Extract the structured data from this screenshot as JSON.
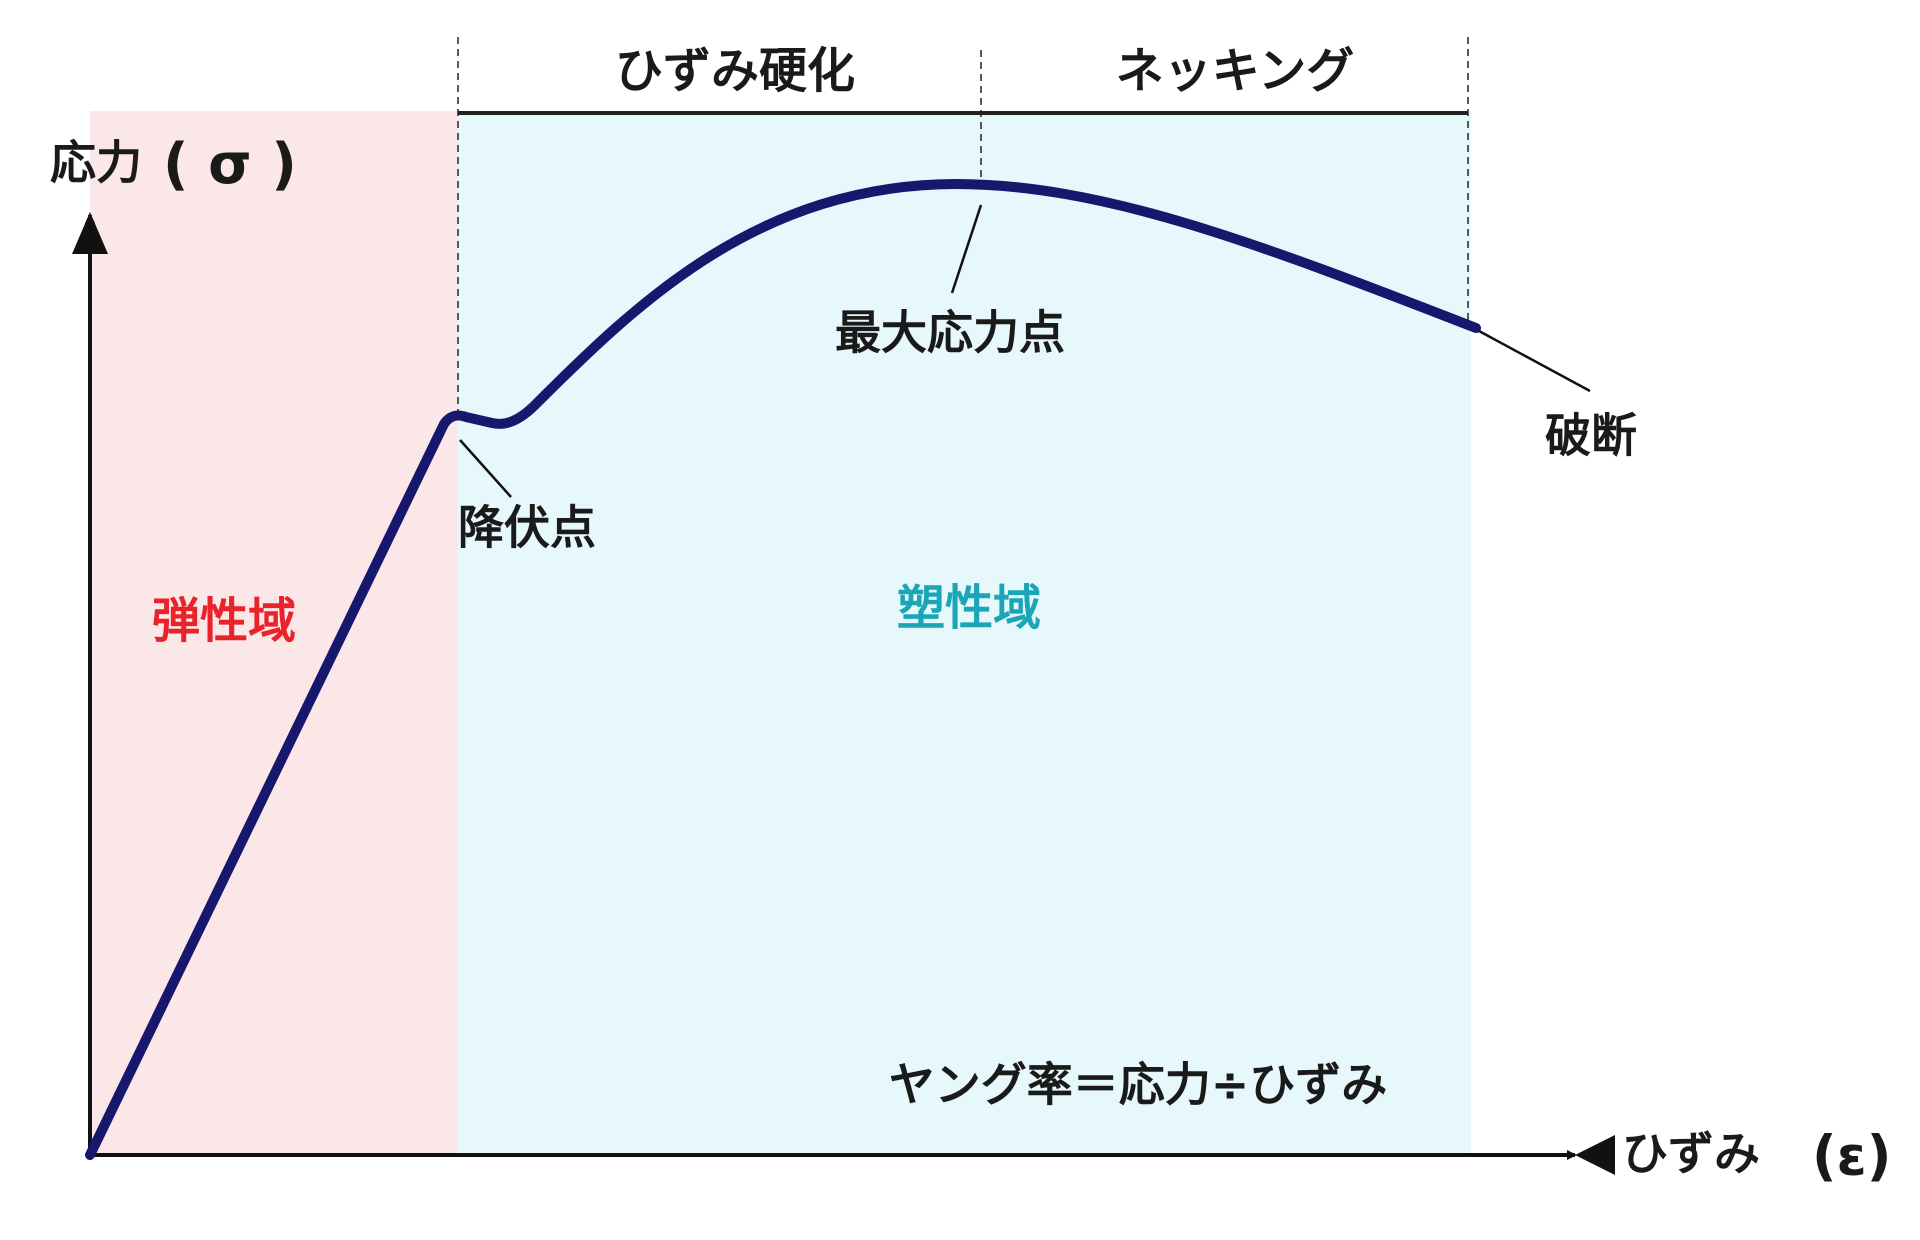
{
  "axes": {
    "y_label": "応力",
    "y_symbol": "( σ )",
    "x_label": "ひずみ",
    "x_symbol": "(ε)"
  },
  "phases": {
    "strain_hardening": "ひずみ硬化",
    "necking": "ネッキング"
  },
  "regions": {
    "elastic": "弾性域",
    "plastic": "塑性域"
  },
  "points": {
    "yield": "降伏点",
    "max_stress": "最大応力点",
    "fracture": "破断"
  },
  "formula": "ヤング率＝応力÷ひずみ"
}
